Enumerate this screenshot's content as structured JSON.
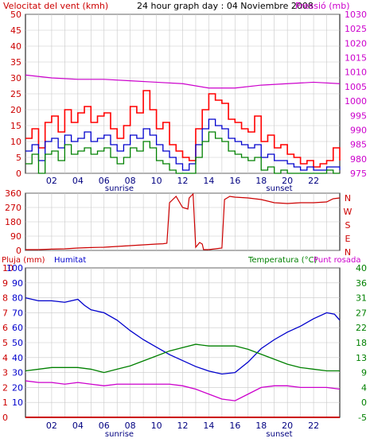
{
  "chart_data": [
    {
      "type": "line",
      "title": "24 hour graph day : 04 Noviembre 2008",
      "left_axis_label": "Velocitat del vent (kmh)",
      "right_axis_label": "Pressió (mb)",
      "x_ticks": [
        "02",
        "04",
        "06",
        "08",
        "10",
        "12",
        "14",
        "16",
        "18",
        "20",
        "22"
      ],
      "x_markers": [
        "sunrise",
        "sunset"
      ],
      "x_range_hours": [
        0,
        24
      ],
      "left_ylim": [
        0,
        50
      ],
      "left_ticks": [
        0,
        5,
        10,
        15,
        20,
        25,
        30,
        35,
        40,
        45,
        50
      ],
      "right_ylim": [
        975,
        1030
      ],
      "right_ticks": [
        975,
        980,
        985,
        990,
        995,
        1000,
        1005,
        1010,
        1015,
        1020,
        1025,
        1030
      ],
      "grid": true,
      "colors": {
        "gust": "#ff0000",
        "wind_avg": "#0000cc",
        "wind_min": "#008000",
        "pressure": "#cc00cc"
      },
      "series": [
        {
          "key": "gust",
          "axis": "left",
          "x": [
            0,
            0.5,
            1,
            1.5,
            2,
            2.5,
            3,
            3.5,
            4,
            4.5,
            5,
            5.5,
            6,
            6.5,
            7,
            7.5,
            8,
            8.5,
            9,
            9.5,
            10,
            10.5,
            11,
            11.5,
            12,
            12.5,
            13,
            13.5,
            14,
            14.5,
            15,
            15.5,
            16,
            16.5,
            17,
            17.5,
            18,
            18.5,
            19,
            19.5,
            20,
            20.5,
            21,
            21.5,
            22,
            22.5,
            23,
            23.5,
            24
          ],
          "values": [
            11,
            14,
            8,
            16,
            18,
            13,
            20,
            16,
            19,
            21,
            16,
            18,
            19,
            14,
            11,
            15,
            21,
            19,
            26,
            20,
            14,
            16,
            9,
            7,
            5,
            4,
            14,
            20,
            25,
            23,
            22,
            17,
            16,
            14,
            13,
            18,
            10,
            12,
            8,
            9,
            6,
            5,
            3,
            4,
            2,
            3,
            4,
            8,
            4
          ]
        },
        {
          "key": "wind_avg",
          "axis": "left",
          "x": [
            0,
            0.5,
            1,
            1.5,
            2,
            2.5,
            3,
            3.5,
            4,
            4.5,
            5,
            5.5,
            6,
            6.5,
            7,
            7.5,
            8,
            8.5,
            9,
            9.5,
            10,
            10.5,
            11,
            11.5,
            12,
            12.5,
            13,
            13.5,
            14,
            14.5,
            15,
            15.5,
            16,
            16.5,
            17,
            17.5,
            18,
            18.5,
            19,
            19.5,
            20,
            20.5,
            21,
            21.5,
            22,
            22.5,
            23,
            23.5,
            24
          ],
          "values": [
            7,
            9,
            4,
            10,
            11,
            8,
            12,
            10,
            11,
            13,
            10,
            11,
            12,
            9,
            7,
            9,
            12,
            11,
            14,
            12,
            9,
            7,
            5,
            3,
            1,
            3,
            9,
            14,
            17,
            15,
            14,
            11,
            10,
            9,
            8,
            9,
            5,
            6,
            4,
            4,
            3,
            2,
            1,
            2,
            1,
            1,
            2,
            2,
            1
          ]
        },
        {
          "key": "wind_min",
          "axis": "left",
          "x": [
            0,
            0.5,
            1,
            1.5,
            2,
            2.5,
            3,
            3.5,
            4,
            4.5,
            5,
            5.5,
            6,
            6.5,
            7,
            7.5,
            8,
            8.5,
            9,
            9.5,
            10,
            10.5,
            11,
            11.5,
            12,
            12.5,
            13,
            13.5,
            14,
            14.5,
            15,
            15.5,
            16,
            16.5,
            17,
            17.5,
            18,
            18.5,
            19,
            19.5,
            20,
            20.5,
            21,
            21.5,
            22,
            22.5,
            23,
            23.5,
            24
          ],
          "values": [
            3,
            6,
            0,
            6,
            7,
            4,
            9,
            6,
            7,
            8,
            6,
            7,
            8,
            5,
            3,
            5,
            8,
            7,
            10,
            8,
            4,
            3,
            1,
            0,
            0,
            0,
            5,
            10,
            13,
            11,
            10,
            7,
            6,
            5,
            4,
            5,
            1,
            2,
            0,
            1,
            0,
            0,
            0,
            0,
            0,
            0,
            1,
            0,
            0
          ]
        },
        {
          "key": "pressure",
          "axis": "right",
          "x": [
            0,
            2,
            4,
            6,
            8,
            10,
            12,
            14,
            15,
            16,
            18,
            20,
            22,
            24
          ],
          "values": [
            1009,
            1008,
            1007.5,
            1007.5,
            1007,
            1006.5,
            1006,
            1004.5,
            1004.5,
            1004.5,
            1005.5,
            1006,
            1006.5,
            1006
          ]
        }
      ]
    },
    {
      "type": "line",
      "left_ylim": [
        0,
        360
      ],
      "left_ticks": [
        0,
        90,
        180,
        270,
        360
      ],
      "right_labels": [
        "N",
        "W",
        "S",
        "E",
        "N"
      ],
      "x_range_hours": [
        0,
        24
      ],
      "grid": true,
      "colors": {
        "direction": "#cc0000"
      },
      "series": [
        {
          "key": "direction",
          "x": [
            0,
            1,
            2,
            3,
            4,
            5,
            6,
            7,
            8,
            9,
            10,
            10.5,
            10.8,
            11,
            11.5,
            12,
            12.4,
            12.5,
            12.8,
            13,
            13.3,
            13.5,
            13.6,
            14,
            14.5,
            15,
            15.2,
            15.6,
            16,
            17,
            18,
            19,
            20,
            21,
            22,
            23,
            23.5,
            24
          ],
          "values": [
            5,
            5,
            8,
            10,
            15,
            18,
            20,
            25,
            30,
            35,
            40,
            42,
            45,
            300,
            340,
            270,
            260,
            330,
            355,
            20,
            50,
            40,
            5,
            5,
            10,
            15,
            320,
            340,
            335,
            330,
            320,
            300,
            295,
            300,
            300,
            305,
            325,
            330
          ]
        }
      ]
    },
    {
      "type": "line",
      "left_axis_label": "Pluja (mm)",
      "humidity_label": "Humitat",
      "right_axis_label_temp": "Temperatura (°C)",
      "right_axis_label_dew": "Punt rosada",
      "x_ticks": [
        "02",
        "04",
        "06",
        "08",
        "10",
        "12",
        "14",
        "16",
        "18",
        "20",
        "22"
      ],
      "x_markers": [
        "sunrise",
        "sunset"
      ],
      "x_range_hours": [
        0,
        24
      ],
      "left_ylim": [
        0,
        10
      ],
      "left_ticks": [
        0,
        1,
        2,
        3,
        4,
        5,
        6,
        7,
        8,
        9,
        10
      ],
      "humidity_ticks": [
        10,
        20,
        30,
        40,
        50,
        60,
        70,
        80,
        90,
        100
      ],
      "humidity_ylim": [
        10,
        100
      ],
      "right_ylim": [
        -5,
        40
      ],
      "right_ticks": [
        -5,
        0,
        4,
        9,
        13,
        18,
        22,
        27,
        31,
        36,
        40
      ],
      "grid": true,
      "colors": {
        "rain": "#cc0000",
        "humidity": "#0000cc",
        "temperature": "#008000",
        "dew_point": "#cc00cc"
      },
      "series": [
        {
          "key": "humidity",
          "axis": "humidity",
          "x": [
            0,
            1,
            2,
            3,
            4,
            4.5,
            5,
            6,
            7,
            8,
            9,
            10,
            11,
            12,
            13,
            14,
            15,
            16,
            17,
            18,
            19,
            20,
            21,
            22,
            23,
            23.6,
            24
          ],
          "values": [
            80,
            78,
            78,
            77,
            79,
            75,
            72,
            70,
            65,
            58,
            52,
            47,
            42,
            38,
            34,
            31,
            29,
            30,
            37,
            46,
            52,
            57,
            61,
            66,
            70,
            69,
            65
          ]
        },
        {
          "key": "temperature",
          "axis": "right",
          "x": [
            0,
            1,
            2,
            3,
            4,
            5,
            6,
            7,
            8,
            9,
            10,
            11,
            12,
            13,
            14,
            15,
            16,
            17,
            18,
            19,
            20,
            21,
            22,
            23,
            24
          ],
          "values": [
            9,
            9.5,
            10,
            10,
            10,
            9.5,
            8.5,
            9.5,
            10.5,
            12,
            13.5,
            15,
            16,
            17,
            16.5,
            16.5,
            16.5,
            15.5,
            14,
            12.5,
            11,
            10,
            9.5,
            9,
            9
          ]
        },
        {
          "key": "dew_point",
          "axis": "right",
          "x": [
            0,
            1,
            2,
            3,
            4,
            5,
            6,
            7,
            8,
            9,
            10,
            11,
            12,
            13,
            14,
            15,
            16,
            17,
            18,
            19,
            20,
            21,
            22,
            23,
            24
          ],
          "values": [
            6,
            5.5,
            5.5,
            5,
            5.5,
            5,
            4.5,
            5,
            5,
            5,
            5,
            5,
            4.5,
            3.5,
            2,
            0.5,
            0,
            2,
            4,
            4.5,
            4.5,
            4,
            4,
            4,
            3.5
          ]
        },
        {
          "key": "rain",
          "axis": "left",
          "x": [
            0,
            24
          ],
          "values": [
            0,
            0
          ]
        }
      ]
    }
  ]
}
